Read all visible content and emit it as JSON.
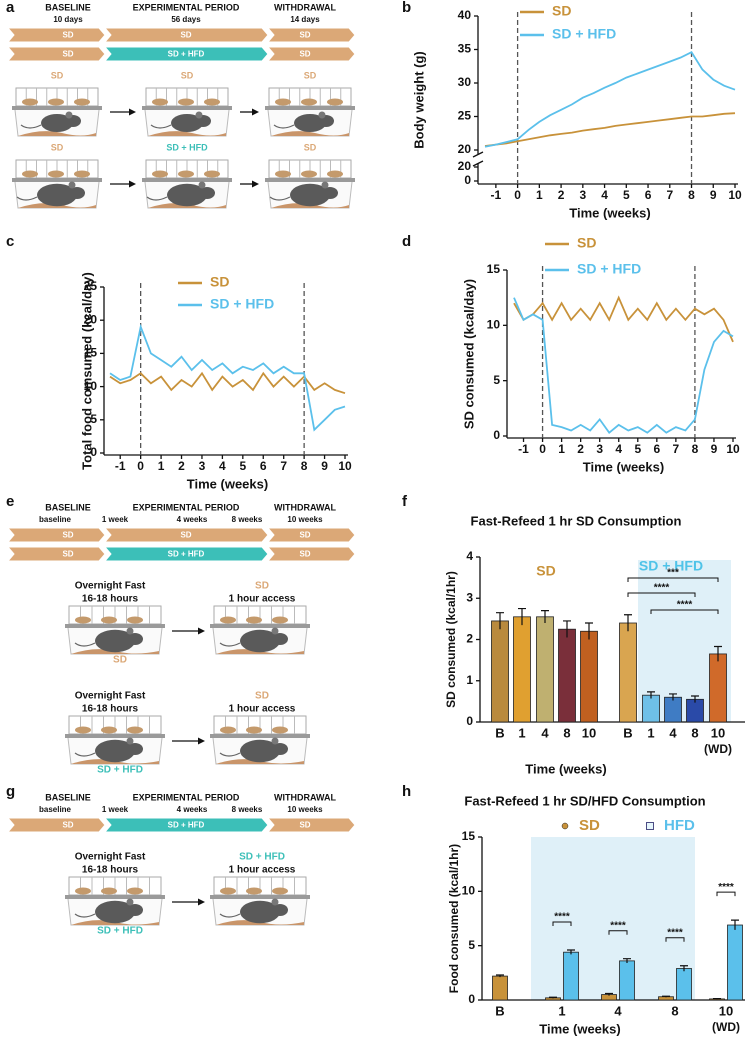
{
  "panel_labels": [
    "a",
    "b",
    "c",
    "d",
    "e",
    "f",
    "g",
    "h"
  ],
  "diet_colors": {
    "SD": "#dba877",
    "SD + HFD": "#3cbfb8"
  },
  "schematics": [
    {
      "phases": [
        "BASELINE",
        "EXPERIMENTAL PERIOD",
        "WITHDRAWAL"
      ],
      "durations": [
        "10 days",
        "56 days",
        "14 days"
      ],
      "timeline_rows": [
        [
          "SD",
          "SD",
          "SD"
        ],
        [
          "SD",
          "SD + HFD",
          "SD"
        ]
      ],
      "cage_rows": [
        [
          "SD",
          "SD",
          "SD"
        ],
        [
          "SD",
          "SD + HFD",
          "SD"
        ]
      ]
    },
    {
      "phases": [
        "BASELINE",
        "EXPERIMENTAL PERIOD",
        "WITHDRAWAL"
      ],
      "timepoints": [
        "baseline",
        "1 week",
        "4 weeks",
        "8 weeks",
        "10 weeks"
      ],
      "timeline_rows": [
        [
          "SD",
          "SD",
          "SD"
        ],
        [
          "SD",
          "SD + HFD",
          "SD"
        ]
      ],
      "tests": [
        {
          "fast": [
            "Overnight Fast",
            "16-18 hours"
          ],
          "access": [
            "SD",
            "1 hour access"
          ],
          "diet": "SD"
        },
        {
          "fast": [
            "Overnight Fast",
            "16-18 hours"
          ],
          "access": [
            "SD",
            "1 hour access"
          ],
          "diet": "SD + HFD"
        }
      ]
    },
    {
      "phases": [
        "BASELINE",
        "EXPERIMENTAL PERIOD",
        "WITHDRAWAL"
      ],
      "timepoints": [
        "baseline",
        "1 week",
        "4 weeks",
        "8 weeks",
        "10 weeks"
      ],
      "timeline_rows": [
        [
          "SD",
          "SD + HFD",
          "SD"
        ]
      ],
      "tests": [
        {
          "fast": [
            "Overnight Fast",
            "16-18 hours"
          ],
          "access": [
            "SD + HFD",
            "1 hour access"
          ],
          "diet": "SD + HFD"
        }
      ]
    }
  ],
  "chart_data": [
    {
      "type": "line",
      "x_label": "Time (weeks)",
      "y_label": "Body weight (g)",
      "x": [
        -1.5,
        -1,
        -0.5,
        0,
        0.5,
        1,
        1.5,
        2,
        2.5,
        3,
        3.5,
        4,
        4.5,
        5,
        5.5,
        6,
        6.5,
        7,
        7.5,
        8,
        8.5,
        9,
        9.5,
        10
      ],
      "series": [
        {
          "name": "SD",
          "color": "#c8923a",
          "values": [
            20.6,
            20.8,
            21.0,
            21.3,
            21.6,
            21.9,
            22.2,
            22.4,
            22.6,
            22.9,
            23.1,
            23.3,
            23.6,
            23.8,
            24.0,
            24.2,
            24.4,
            24.6,
            24.8,
            25.0,
            25.0,
            25.2,
            25.4,
            25.5
          ]
        },
        {
          "name": "SD + HFD",
          "color": "#5bc0eb",
          "values": [
            20.5,
            20.8,
            21.2,
            21.6,
            23.0,
            24.2,
            25.2,
            26.0,
            26.8,
            27.8,
            28.5,
            29.3,
            30.0,
            30.8,
            31.4,
            32.0,
            32.6,
            33.2,
            33.8,
            34.6,
            32.0,
            30.5,
            29.6,
            29.0
          ]
        }
      ],
      "xlim": [
        -1.5,
        10
      ],
      "xticks": [
        -1,
        0,
        1,
        2,
        3,
        4,
        5,
        6,
        7,
        8,
        9,
        10
      ],
      "ylim": [
        20,
        40
      ],
      "yticks": [
        20,
        25,
        30,
        35,
        40
      ],
      "ylim_lower": [
        0,
        20
      ],
      "yticks_lower": [
        0,
        20
      ],
      "vlines": [
        0,
        8
      ]
    },
    {
      "type": "line",
      "x_label": "Time (weeks)",
      "y_label": "Total food comsumed (kcal/day)",
      "x": [
        -1.5,
        -1,
        -0.5,
        0,
        0.5,
        1,
        1.5,
        2,
        2.5,
        3,
        3.5,
        4,
        4.5,
        5,
        5.5,
        6,
        6.5,
        7,
        7.5,
        8,
        8.5,
        9,
        9.5,
        10
      ],
      "series": [
        {
          "name": "SD",
          "color": "#c8923a",
          "values": [
            11.5,
            10.5,
            11.0,
            12.0,
            10.5,
            11.5,
            9.5,
            11.0,
            10.0,
            12.0,
            9.5,
            11.5,
            10.0,
            11.0,
            9.5,
            12.0,
            10.0,
            11.5,
            10.0,
            11.5,
            9.5,
            10.5,
            9.5,
            9.0
          ]
        },
        {
          "name": "SD + HFD",
          "color": "#5bc0eb",
          "values": [
            12.0,
            11.0,
            11.5,
            19.0,
            15.0,
            14.0,
            13.0,
            14.5,
            12.5,
            14.0,
            12.5,
            13.5,
            12.0,
            13.0,
            12.5,
            13.5,
            12.0,
            13.0,
            12.0,
            12.0,
            3.5,
            5.0,
            6.5,
            7.0
          ]
        }
      ],
      "xlim": [
        -1.5,
        10
      ],
      "xticks": [
        -1,
        0,
        1,
        2,
        3,
        4,
        5,
        6,
        7,
        8,
        9,
        10
      ],
      "ylim": [
        0,
        25
      ],
      "yticks": [
        0,
        5,
        10,
        15,
        20,
        25
      ],
      "vlines": [
        0,
        8
      ]
    },
    {
      "type": "line",
      "x_label": "Time (weeks)",
      "y_label": "SD consumed (kcal/day)",
      "x": [
        -1.5,
        -1,
        -0.5,
        0,
        0.5,
        1,
        1.5,
        2,
        2.5,
        3,
        3.5,
        4,
        4.5,
        5,
        5.5,
        6,
        6.5,
        7,
        7.5,
        8,
        8.5,
        9,
        9.5,
        10
      ],
      "series": [
        {
          "name": "SD",
          "color": "#c8923a",
          "values": [
            12.0,
            10.5,
            11.0,
            12.0,
            10.5,
            12.0,
            10.5,
            11.5,
            10.5,
            12.0,
            10.5,
            12.5,
            10.5,
            11.5,
            10.5,
            12.0,
            10.5,
            11.5,
            10.5,
            11.5,
            11.0,
            11.5,
            10.5,
            8.5
          ]
        },
        {
          "name": "SD + HFD",
          "color": "#5bc0eb",
          "values": [
            12.5,
            10.5,
            11.0,
            10.5,
            1.0,
            0.8,
            0.5,
            1.0,
            0.5,
            1.5,
            0.3,
            1.0,
            0.5,
            0.8,
            0.3,
            1.0,
            0.3,
            0.8,
            0.5,
            1.5,
            6.0,
            8.5,
            9.5,
            9.0
          ]
        }
      ],
      "xlim": [
        -1.5,
        10
      ],
      "xticks": [
        -1,
        0,
        1,
        2,
        3,
        4,
        5,
        6,
        7,
        8,
        9,
        10
      ],
      "ylim": [
        0,
        15
      ],
      "yticks": [
        0,
        5,
        10,
        15
      ],
      "vlines": [
        0,
        8
      ]
    },
    {
      "type": "bar",
      "title": "Fast-Refeed 1 hr SD Consumption",
      "x_label": "Time (weeks)",
      "y_label": "SD consumed (kcal/1hr)",
      "categories": [
        "B",
        "1",
        "4",
        "8",
        "10",
        "B",
        "1",
        "4",
        "8",
        "10"
      ],
      "x_note": "(WD)",
      "values": [
        2.45,
        2.55,
        2.55,
        2.25,
        2.2,
        2.4,
        0.65,
        0.6,
        0.55,
        1.65
      ],
      "errors": [
        0.2,
        0.2,
        0.15,
        0.2,
        0.2,
        0.2,
        0.08,
        0.08,
        0.08,
        0.18
      ],
      "colors": [
        "#b98a3e",
        "#e0a030",
        "#bfb070",
        "#7a2f3a",
        "#c06020",
        "#d9a550",
        "#6ec0e8",
        "#3f7cc4",
        "#2a4aa8",
        "#d06a2a"
      ],
      "groups": [
        {
          "name": "SD",
          "color": "#c8923a"
        },
        {
          "name": "SD + HFD",
          "color": "#4fc3e8"
        }
      ],
      "comparisons": [
        "***",
        "****",
        "****"
      ],
      "ylim": [
        0,
        4
      ],
      "yticks": [
        0,
        1,
        2,
        3,
        4
      ]
    },
    {
      "type": "grouped_bar",
      "title": "Fast-Refeed 1 hr SD/HFD Consumption",
      "x_label": "Time (weeks)",
      "y_label": "Food consumed (kcal/1hr)",
      "categories": [
        "B",
        "1",
        "4",
        "8",
        "10"
      ],
      "x_note": "(WD)",
      "series": [
        {
          "name": "SD",
          "color": "#c8923a",
          "values": [
            2.2,
            0.2,
            0.5,
            0.3,
            0.1
          ],
          "errors": [
            0.1,
            0.05,
            0.1,
            0.05,
            0.03
          ]
        },
        {
          "name": "HFD",
          "color": "#5bc0eb",
          "values": [
            null,
            4.4,
            3.6,
            2.9,
            6.9
          ],
          "errors": [
            null,
            0.2,
            0.2,
            0.25,
            0.45
          ]
        }
      ],
      "comparisons": [
        "****",
        "****",
        "****",
        "****"
      ],
      "ylim": [
        0,
        15
      ],
      "yticks": [
        0,
        5,
        10,
        15
      ]
    }
  ]
}
